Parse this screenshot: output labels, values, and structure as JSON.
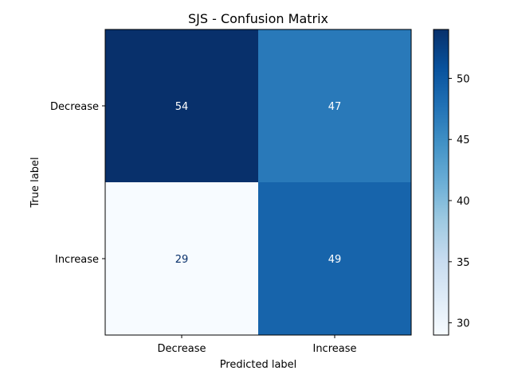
{
  "chart_data": {
    "type": "heatmap",
    "title": "SJS - Confusion Matrix",
    "xlabel": "Predicted label",
    "ylabel": "True label",
    "x_categories": [
      "Decrease",
      "Increase"
    ],
    "y_categories": [
      "Decrease",
      "Increase"
    ],
    "values": [
      [
        54,
        47
      ],
      [
        29,
        49
      ]
    ],
    "colormap": "Blues",
    "colorbar": {
      "min": 29,
      "max": 54,
      "ticks": [
        30,
        35,
        40,
        45,
        50
      ],
      "tick_labels": [
        "30",
        "35",
        "40",
        "45",
        "50"
      ]
    },
    "cell_text_colors": {
      "dark": "#ffffff",
      "light": "#08306b"
    }
  }
}
